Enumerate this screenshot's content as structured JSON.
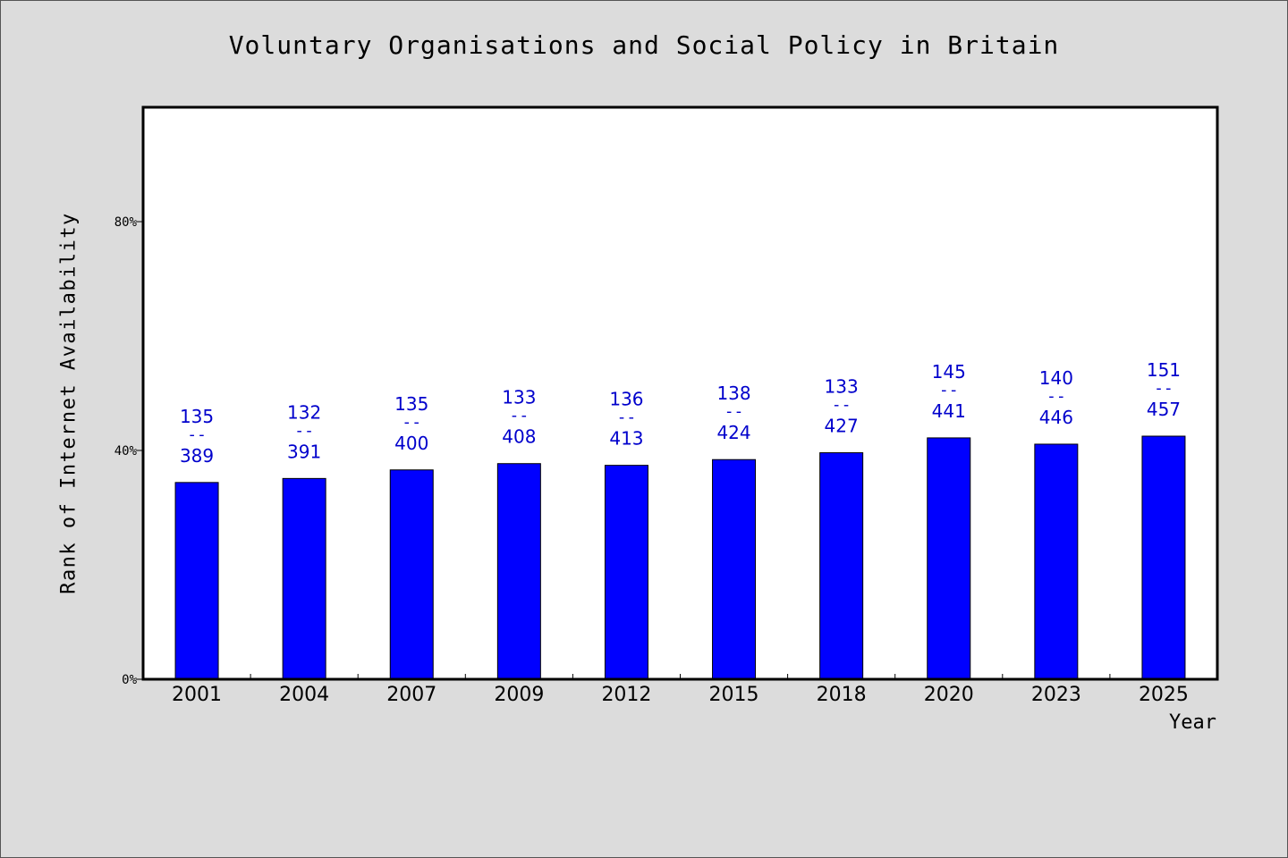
{
  "chart_data": {
    "type": "bar",
    "title": "Voluntary Organisations and Social Policy in Britain",
    "xlabel": "Year",
    "ylabel": "Rank of Internet Availability",
    "categories": [
      "2001",
      "2004",
      "2007",
      "2009",
      "2012",
      "2015",
      "2018",
      "2020",
      "2023",
      "2025"
    ],
    "values": [
      34.4,
      35.1,
      36.6,
      37.7,
      37.4,
      38.4,
      39.6,
      42.2,
      41.1,
      42.5
    ],
    "ylim": [
      0,
      100
    ],
    "yticks": [
      0,
      40,
      80
    ],
    "ytick_labels": [
      "0%",
      "40%",
      "80%"
    ],
    "data_labels": [
      {
        "top": "135",
        "sep": "--",
        "bottom": "389"
      },
      {
        "top": "132",
        "sep": "--",
        "bottom": "391"
      },
      {
        "top": "135",
        "sep": "--",
        "bottom": "400"
      },
      {
        "top": "133",
        "sep": "--",
        "bottom": "408"
      },
      {
        "top": "136",
        "sep": "--",
        "bottom": "413"
      },
      {
        "top": "138",
        "sep": "--",
        "bottom": "424"
      },
      {
        "top": "133",
        "sep": "--",
        "bottom": "427"
      },
      {
        "top": "145",
        "sep": "--",
        "bottom": "441"
      },
      {
        "top": "140",
        "sep": "--",
        "bottom": "446"
      },
      {
        "top": "151",
        "sep": "--",
        "bottom": "457"
      }
    ],
    "bar_color": "#0000ff",
    "label_color": "#0000cc",
    "background_color": "#dcdcdc",
    "plot_background": "#ffffff",
    "grid": false,
    "legend": "none"
  }
}
